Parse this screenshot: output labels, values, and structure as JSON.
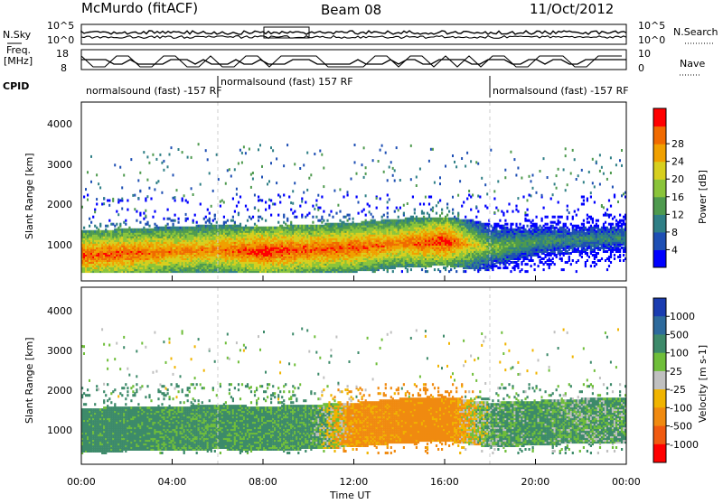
{
  "header": {
    "station": "McMurdo (fitACF)",
    "beam": "Beam 08",
    "date": "11/Oct/2012"
  },
  "left_labels": {
    "nsky": "N.Sky",
    "freq": "Freq.",
    "freq_unit": "[MHz]",
    "cpid": "CPID"
  },
  "right_labels": {
    "nsearch": "N.Search",
    "nave": "Nave"
  },
  "noise_panel": {
    "left_ticks": [
      "10^5",
      "10^0"
    ],
    "right_ticks": [
      "10^5",
      "10^0"
    ]
  },
  "freq_panel": {
    "left_ticks": [
      "18",
      "8"
    ],
    "right_ticks": [
      "10",
      "0"
    ]
  },
  "cpid_segments": [
    {
      "text": "normalsound (fast) -157 RF",
      "start_h": 0,
      "end_h": 6
    },
    {
      "text": "normalsound (fast) 157 RF",
      "start_h": 6,
      "end_h": 18
    },
    {
      "text": "normalsound (fast) -157 RF",
      "start_h": 18,
      "end_h": 24
    }
  ],
  "power_panel": {
    "ylabel": "Slant Range [km]",
    "cbar_label": "Power [dB]",
    "cbar_ticks": [
      "4",
      "8",
      "12",
      "16",
      "20",
      "24",
      "28"
    ],
    "cbar_colors": [
      "#0000ff",
      "#1e4fb4",
      "#2f7f86",
      "#4e9a4e",
      "#8ac43a",
      "#d7cf1e",
      "#f0a000",
      "#f06a00",
      "#ff0000"
    ]
  },
  "velocity_panel": {
    "ylabel": "Slant Range [km]",
    "cbar_label": "Velocity [m s-1]",
    "cbar_ticks": [
      "1000",
      "500",
      "100",
      "25",
      "-25",
      "-100",
      "-500",
      "-1000"
    ],
    "cbar_colors": [
      "#1a3cb0",
      "#2d6a9c",
      "#3d8a6a",
      "#6fbe3a",
      "#c0c0c0",
      "#f0b400",
      "#f08a10",
      "#f05a10",
      "#ff0000"
    ]
  },
  "y_ticks": [
    "1000",
    "2000",
    "3000",
    "4000"
  ],
  "x_ticks": [
    "00:00",
    "04:00",
    "08:00",
    "12:00",
    "16:00",
    "20:00",
    "00:00"
  ],
  "xlabel": "Time UT",
  "chart_data": [
    {
      "type": "heatmap",
      "title": "",
      "xlabel": "Time UT",
      "ylabel": "Slant Range [km]",
      "xlim_hours": [
        0,
        24
      ],
      "ylim": [
        180,
        4600
      ],
      "colorbar_label": "Power [dB]",
      "colorbar_range": [
        0,
        32
      ],
      "scatter_band": {
        "hours": [
          0,
          2,
          4,
          6,
          8,
          10,
          12,
          14,
          16,
          18,
          20,
          22,
          24
        ],
        "range_center_km": [
          800,
          850,
          900,
          950,
          900,
          950,
          1000,
          1100,
          1150,
          1000,
          1150,
          1200,
          1250
        ],
        "peak_power_db": [
          28,
          28,
          26,
          26,
          30,
          28,
          28,
          26,
          30,
          16,
          12,
          10,
          10
        ]
      }
    },
    {
      "type": "heatmap",
      "title": "",
      "xlabel": "Time UT",
      "ylabel": "Slant Range [km]",
      "xlim_hours": [
        0,
        24
      ],
      "ylim": [
        180,
        4600
      ],
      "colorbar_label": "Velocity [m s-1]",
      "colorbar_levels": [
        1000,
        500,
        100,
        25,
        -25,
        -100,
        -500,
        -1000
      ],
      "scatter_band": {
        "hours": [
          0,
          2,
          4,
          6,
          8,
          10,
          12,
          14,
          16,
          18,
          20,
          22,
          24
        ],
        "range_center_km": [
          1000,
          1050,
          1050,
          1100,
          1050,
          1100,
          1150,
          1250,
          1300,
          1150,
          1200,
          1250,
          1250
        ],
        "dominant_velocity_ms": [
          200,
          200,
          150,
          150,
          150,
          150,
          -150,
          -200,
          -200,
          100,
          150,
          100,
          100
        ]
      }
    }
  ]
}
